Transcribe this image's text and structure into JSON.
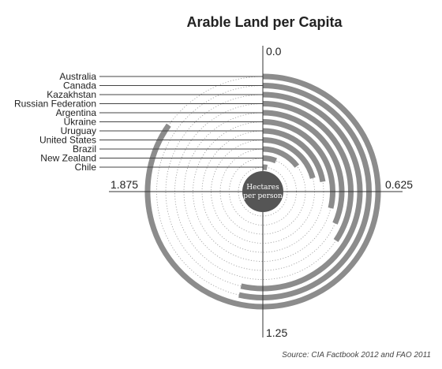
{
  "chart_data": {
    "type": "radial-bar",
    "title": "Arable Land per Capita",
    "unit_label": [
      "Hectares",
      "per person"
    ],
    "source": "Source: CIA Factbook 2012 and FAO 2011",
    "axis_labels": {
      "top": "0.0",
      "right": "0.625",
      "bottom": "1.25",
      "left": "1.875"
    },
    "full_turn_value": 2.5,
    "categories": [
      "Australia",
      "Canada",
      "Kazakhstan",
      "Russian Federation",
      "Argentina",
      "Ukraine",
      "Uruguay",
      "United States",
      "Brazil",
      "New Zealand",
      "Chile"
    ],
    "values": [
      2.12,
      1.34,
      1.34,
      0.86,
      0.79,
      0.72,
      0.56,
      0.52,
      0.37,
      0.16,
      0.07
    ],
    "colors": {
      "bar": "#8c8c8c",
      "axis": "#333333",
      "guide": "#9a9a9a",
      "center": "#555555"
    }
  }
}
